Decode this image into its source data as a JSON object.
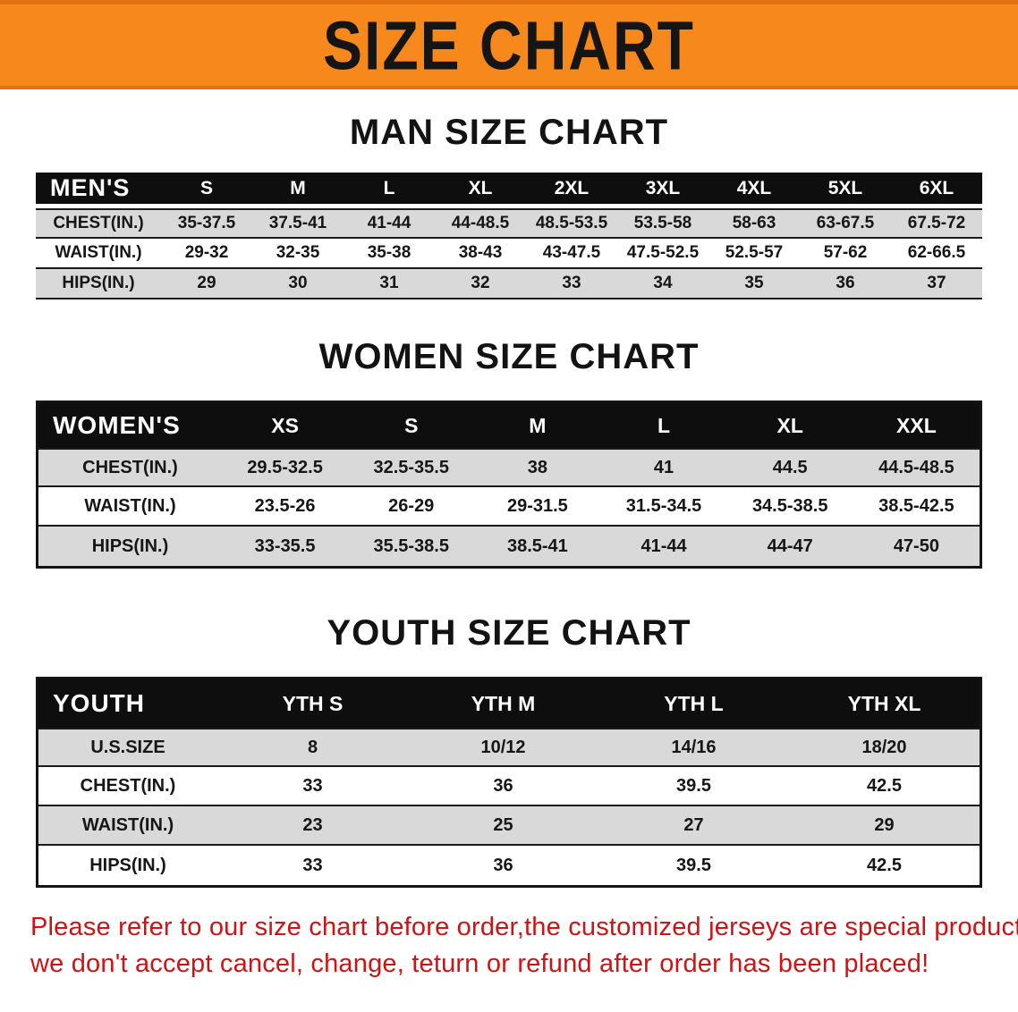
{
  "banner": {
    "title": "SIZE CHART"
  },
  "colors": {
    "banner_bg": "#f6881c",
    "header_bg": "#0e0e0e",
    "row_gray": "#d9d9d9",
    "notice_red": "#cf1315"
  },
  "sections": [
    {
      "id": "men",
      "heading": "MAN SIZE CHART",
      "corner_label": "MEN'S",
      "sizes": [
        "S",
        "M",
        "L",
        "XL",
        "2XL",
        "3XL",
        "4XL",
        "5XL",
        "6XL"
      ],
      "rows": [
        {
          "label": "CHEST(IN.)",
          "values": [
            "35-37.5",
            "37.5-41",
            "41-44",
            "44-48.5",
            "48.5-53.5",
            "53.5-58",
            "58-63",
            "63-67.5",
            "67.5-72"
          ]
        },
        {
          "label": "WAIST(IN.)",
          "values": [
            "29-32",
            "32-35",
            "35-38",
            "38-43",
            "43-47.5",
            "47.5-52.5",
            "52.5-57",
            "57-62",
            "62-66.5"
          ]
        },
        {
          "label": "HIPS(IN.)",
          "values": [
            "29",
            "30",
            "31",
            "32",
            "33",
            "34",
            "35",
            "36",
            "37"
          ]
        }
      ]
    },
    {
      "id": "women",
      "heading": "WOMEN SIZE CHART",
      "corner_label": "WOMEN'S",
      "sizes": [
        "XS",
        "S",
        "M",
        "L",
        "XL",
        "XXL"
      ],
      "rows": [
        {
          "label": "CHEST(IN.)",
          "values": [
            "29.5-32.5",
            "32.5-35.5",
            "38",
            "41",
            "44.5",
            "44.5-48.5"
          ]
        },
        {
          "label": "WAIST(IN.)",
          "values": [
            "23.5-26",
            "26-29",
            "29-31.5",
            "31.5-34.5",
            "34.5-38.5",
            "38.5-42.5"
          ]
        },
        {
          "label": "HIPS(IN.)",
          "values": [
            "33-35.5",
            "35.5-38.5",
            "38.5-41",
            "41-44",
            "44-47",
            "47-50"
          ]
        }
      ]
    },
    {
      "id": "youth",
      "heading": "YOUTH SIZE CHART",
      "corner_label": "YOUTH",
      "sizes": [
        "YTH S",
        "YTH M",
        "YTH L",
        "YTH XL"
      ],
      "rows": [
        {
          "label": "U.S.SIZE",
          "values": [
            "8",
            "10/12",
            "14/16",
            "18/20"
          ]
        },
        {
          "label": "CHEST(IN.)",
          "values": [
            "33",
            "36",
            "39.5",
            "42.5"
          ]
        },
        {
          "label": "WAIST(IN.)",
          "values": [
            "23",
            "25",
            "27",
            "29"
          ]
        },
        {
          "label": "HIPS(IN.)",
          "values": [
            "33",
            "36",
            "39.5",
            "42.5"
          ]
        }
      ]
    }
  ],
  "footer": {
    "line1": "Please refer to our size chart before order,the customized jerseys are special products,",
    "line2": "we don't accept cancel, change, teturn or refund after order has been placed!"
  }
}
